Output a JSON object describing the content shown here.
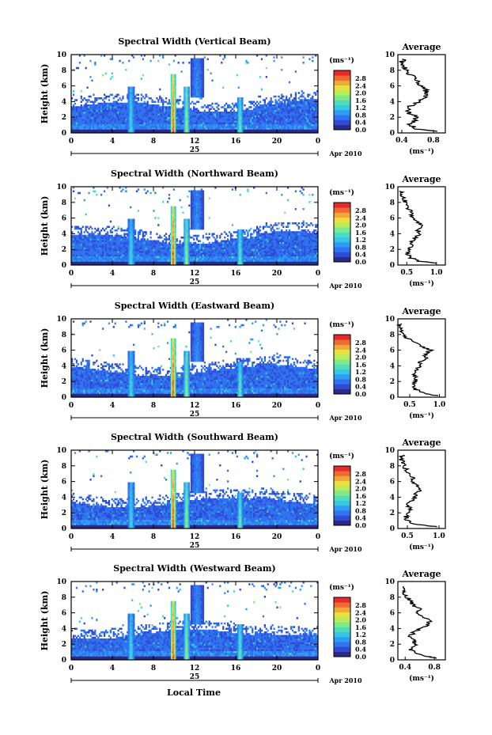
{
  "colorbar": {
    "unit": "(ms⁻¹)",
    "ticks": [
      "0.0",
      "0.4",
      "0.8",
      "1.2",
      "1.6",
      "2.0",
      "2.4",
      "2.8"
    ],
    "colors": [
      "#2a2a8a",
      "#2f4bd6",
      "#2f73ee",
      "#2e9cf4",
      "#38c6e6",
      "#4ddcc0",
      "#7ee88c",
      "#b8ec58",
      "#ece040",
      "#f2a838",
      "#ee6a30",
      "#e42a2a"
    ]
  },
  "shared": {
    "ylabel": "Height (km)",
    "yticks": [
      "0",
      "2",
      "4",
      "6",
      "8",
      "10"
    ],
    "xticks": [
      "0",
      "4",
      "8",
      "12",
      "16",
      "20",
      "0"
    ],
    "date_day": "25",
    "date_label": "Apr 2010",
    "avg_title": "Average",
    "avg_unit": "(ms⁻¹)",
    "xlabel": "Local Time"
  },
  "chart_data": [
    {
      "type": "heatmap",
      "title": "Spectral Width (Vertical Beam)",
      "x_range": [
        0,
        24
      ],
      "y_range": [
        0,
        10
      ],
      "color_range": [
        0.0,
        2.8
      ],
      "average_profile": {
        "xticks": [
          "0.4",
          "0.8"
        ],
        "x_range": [
          0.35,
          0.95
        ],
        "height": [
          0.2,
          0.5,
          1,
          1.5,
          2,
          2.5,
          3,
          3.5,
          4,
          4.5,
          5,
          5.5,
          6,
          6.5,
          7,
          7.5,
          8,
          8.5,
          9,
          9.5
        ],
        "value": [
          0.85,
          0.6,
          0.5,
          0.55,
          0.58,
          0.5,
          0.48,
          0.52,
          0.62,
          0.68,
          0.72,
          0.7,
          0.64,
          0.62,
          0.58,
          0.5,
          0.45,
          0.42,
          0.4,
          0.42
        ]
      }
    },
    {
      "type": "heatmap",
      "title": "Spectral Width (Northward Beam)",
      "x_range": [
        0,
        24
      ],
      "y_range": [
        0,
        10
      ],
      "color_range": [
        0.0,
        2.8
      ],
      "average_profile": {
        "xticks": [
          "0.5",
          "1.0"
        ],
        "x_range": [
          0.35,
          1.15
        ],
        "height": [
          0.2,
          0.5,
          1,
          1.5,
          2,
          2.5,
          3,
          3.5,
          4,
          4.5,
          5,
          5.5,
          6,
          6.5,
          7,
          7.5,
          8,
          8.5,
          9,
          9.5
        ],
        "value": [
          1.0,
          0.7,
          0.55,
          0.5,
          0.55,
          0.6,
          0.58,
          0.65,
          0.72,
          0.68,
          0.75,
          0.7,
          0.6,
          0.58,
          0.55,
          0.5,
          0.48,
          0.45,
          0.42,
          0.4
        ]
      }
    },
    {
      "type": "heatmap",
      "title": "Spectral Width (Eastward Beam)",
      "x_range": [
        0,
        24
      ],
      "y_range": [
        0,
        10
      ],
      "color_range": [
        0.0,
        2.8
      ],
      "average_profile": {
        "xticks": [
          "0.5",
          "1.0"
        ],
        "x_range": [
          0.3,
          1.1
        ],
        "height": [
          0.2,
          0.5,
          1,
          1.5,
          2,
          2.5,
          3,
          3.5,
          4,
          4.5,
          5,
          5.5,
          6,
          6.5,
          7,
          7.5,
          8,
          8.5,
          9,
          9.5
        ],
        "value": [
          0.95,
          0.75,
          0.6,
          0.55,
          0.6,
          0.62,
          0.55,
          0.6,
          0.7,
          0.65,
          0.8,
          0.75,
          0.85,
          0.7,
          0.6,
          0.45,
          0.38,
          0.35,
          0.32,
          0.33
        ]
      }
    },
    {
      "type": "heatmap",
      "title": "Spectral Width (Southward Beam)",
      "x_range": [
        0,
        24
      ],
      "y_range": [
        0,
        10
      ],
      "color_range": [
        0.0,
        2.8
      ],
      "average_profile": {
        "xticks": [
          "0.5",
          "1.0"
        ],
        "x_range": [
          0.35,
          1.1
        ],
        "height": [
          0.2,
          0.5,
          1,
          1.5,
          2,
          2.5,
          3,
          3.5,
          4,
          4.5,
          5,
          5.5,
          6,
          6.5,
          7,
          7.5,
          8,
          8.5,
          9,
          9.5
        ],
        "value": [
          1.0,
          0.65,
          0.5,
          0.48,
          0.52,
          0.55,
          0.5,
          0.58,
          0.62,
          0.65,
          0.72,
          0.65,
          0.58,
          0.6,
          0.52,
          0.48,
          0.45,
          0.42,
          0.4,
          0.42
        ]
      }
    },
    {
      "type": "heatmap",
      "title": "Spectral Width (Westward Beam)",
      "x_range": [
        0,
        24
      ],
      "y_range": [
        0,
        10
      ],
      "color_range": [
        0.0,
        2.8
      ],
      "average_profile": {
        "xticks": [
          "0.4",
          "0.8"
        ],
        "x_range": [
          0.3,
          0.95
        ],
        "height": [
          0.2,
          0.5,
          1,
          1.5,
          2,
          2.5,
          3,
          3.5,
          4,
          4.5,
          5,
          5.5,
          6,
          6.5,
          7,
          7.5,
          8,
          8.5,
          9,
          9.5
        ],
        "value": [
          0.85,
          0.65,
          0.5,
          0.48,
          0.55,
          0.52,
          0.48,
          0.5,
          0.62,
          0.7,
          0.75,
          0.65,
          0.55,
          0.6,
          0.52,
          0.48,
          0.42,
          0.4,
          0.38,
          0.42
        ]
      }
    }
  ]
}
